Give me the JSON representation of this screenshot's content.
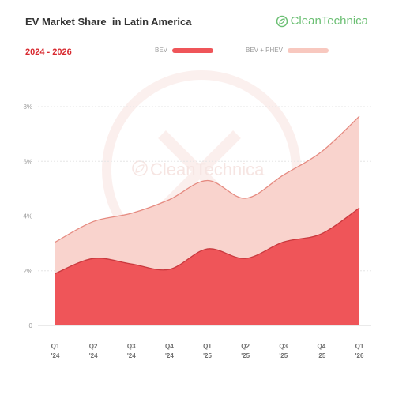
{
  "header": {
    "title": "EV Market Share  in Latin America",
    "subtitle": "2024 - 2026",
    "brand": "CleanTechnica"
  },
  "chart_data": {
    "type": "area",
    "title": "EV Market Share  in Latin America",
    "subtitle": "2024 - 2026",
    "categories": [
      "Q1 '24",
      "Q2 '24",
      "Q3 '24",
      "Q4 '24",
      "Q1 '25",
      "Q2 '25",
      "Q3 '25",
      "Q4 '25",
      "Q1 '26"
    ],
    "x_ticks": [
      {
        "q": "Q1",
        "y": "'24"
      },
      {
        "q": "Q2",
        "y": "'24"
      },
      {
        "q": "Q3",
        "y": "'24"
      },
      {
        "q": "Q4",
        "y": "'24"
      },
      {
        "q": "Q1",
        "y": "'25"
      },
      {
        "q": "Q2",
        "y": "'25"
      },
      {
        "q": "Q3",
        "y": "'25"
      },
      {
        "q": "Q4",
        "y": "'25"
      },
      {
        "q": "Q1",
        "y": "'26"
      }
    ],
    "y_ticks": [
      "0",
      "2%",
      "4%",
      "6%",
      "8%"
    ],
    "y_tick_values": [
      0,
      2,
      4,
      6,
      8
    ],
    "ylim": [
      0,
      8
    ],
    "series": [
      {
        "name": "BEV",
        "color": "#ef5559",
        "values": [
          1.9,
          2.45,
          2.25,
          2.05,
          2.8,
          2.45,
          3.05,
          3.35,
          4.3
        ]
      },
      {
        "name": "BEV + PHEV",
        "color": "#f9d3cd",
        "values": [
          3.05,
          3.8,
          4.1,
          4.6,
          5.3,
          4.65,
          5.5,
          6.35,
          7.65
        ]
      }
    ],
    "grid": true,
    "legend_position": "top-center"
  }
}
